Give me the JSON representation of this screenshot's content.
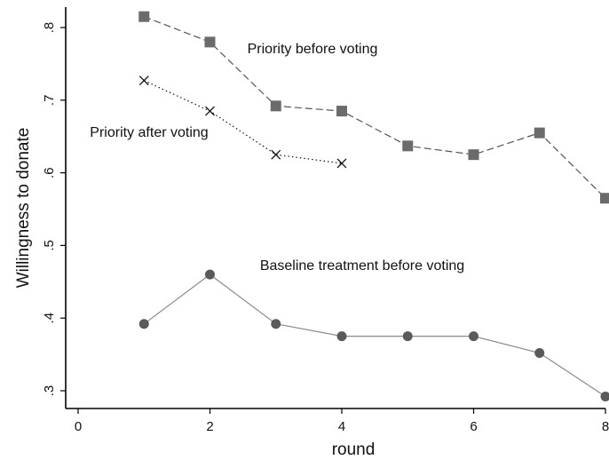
{
  "chart_data": {
    "type": "line",
    "title": "",
    "xlabel": "round",
    "ylabel": "Willingness to donate",
    "xlim": [
      0,
      8
    ],
    "ylim": [
      0.3,
      0.8
    ],
    "xticks": [
      0,
      2,
      4,
      6,
      8
    ],
    "yticks": [
      0.3,
      0.4,
      0.5,
      0.6,
      0.7,
      0.8
    ],
    "ytick_labels": [
      ".3",
      ".4",
      ".5",
      ".6",
      ".7",
      ".8"
    ],
    "grid": false,
    "series": [
      {
        "name": "Priority before voting",
        "x": [
          1,
          2,
          3,
          4,
          5,
          6,
          7,
          8
        ],
        "y": [
          0.815,
          0.78,
          0.692,
          0.685,
          0.637,
          0.625,
          0.655,
          0.565
        ],
        "marker": "square",
        "line_style": "dashed",
        "color": "#555555"
      },
      {
        "name": "Priority after voting",
        "x": [
          1,
          2,
          3,
          4
        ],
        "y": [
          0.727,
          0.685,
          0.625,
          0.613
        ],
        "marker": "x",
        "line_style": "dotted",
        "color": "#111111"
      },
      {
        "name": "Baseline treatment before voting",
        "x": [
          1,
          2,
          3,
          4,
          5,
          6,
          7,
          8
        ],
        "y": [
          0.392,
          0.46,
          0.392,
          0.375,
          0.375,
          0.375,
          0.352,
          0.292
        ],
        "marker": "circle",
        "line_style": "solid",
        "color": "#555555"
      }
    ]
  }
}
